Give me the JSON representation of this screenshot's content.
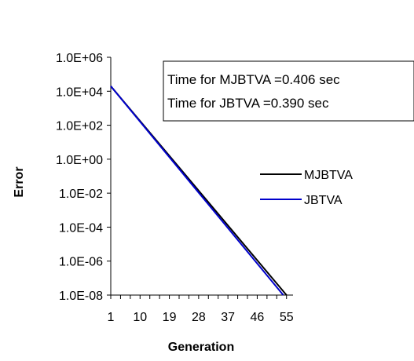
{
  "chart_data": {
    "type": "line",
    "xlabel": "Generation",
    "ylabel": "Error",
    "y_scale": "log",
    "ylim": [
      1e-08,
      1000000.0
    ],
    "xlim": [
      1,
      57
    ],
    "x_ticks": [
      1,
      10,
      19,
      28,
      37,
      46,
      55
    ],
    "y_ticks": [
      "1.0E+06",
      "1.0E+04",
      "1.0E+02",
      "1.0E+00",
      "1.0E-02",
      "1.0E-04",
      "1.0E-06",
      "1.0E-08"
    ],
    "annotations": [
      "Time for MJBTVA =0.406 sec",
      "Time for JBTVA =0.390 sec"
    ],
    "legend_position": "right",
    "series": [
      {
        "name": "MJBTVA",
        "color": "#000000",
        "points": [
          [
            1,
            20000
          ],
          [
            55,
            1e-08
          ]
        ]
      },
      {
        "name": "JBTVA",
        "color": "#0000cc",
        "points": [
          [
            1,
            20000
          ],
          [
            54,
            1e-08
          ]
        ]
      }
    ]
  }
}
